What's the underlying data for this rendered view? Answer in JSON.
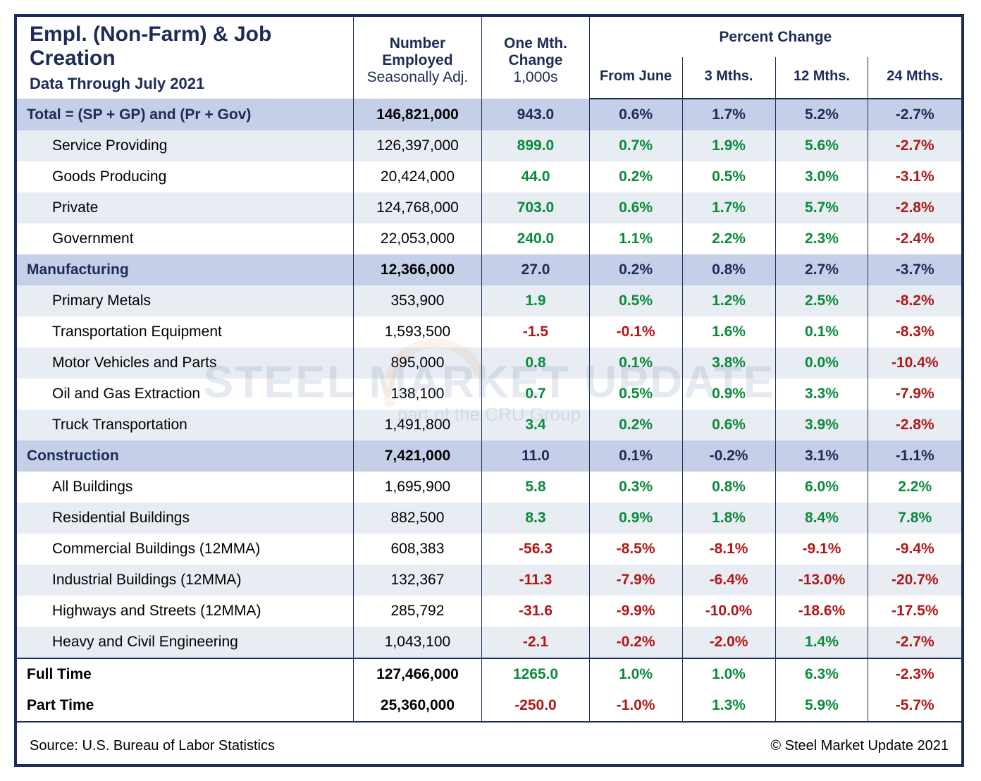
{
  "title": "Empl. (Non-Farm) & Job Creation",
  "subtitle": "Data Through July 2021",
  "headers": {
    "number_employed_top": "Number Employed",
    "number_employed_bot": "Seasonally Adj.",
    "one_month_top": "One Mth. Change",
    "one_month_bot": "1,000s",
    "percent_change": "Percent Change",
    "from_june": "From June",
    "m3": "3 Mths.",
    "m12": "12 Mths.",
    "m24": "24 Mths."
  },
  "colors": {
    "border": "#1d2b56",
    "section_bg": "#c5cfe8",
    "stripe": "#e8ecf3",
    "heading_text": "#1d2b56",
    "positive": "#0a8a3a",
    "negative": "#b01818"
  },
  "watermark": {
    "line1": "STEEL MARKET UPDATE",
    "line2": "part of the CRU Group"
  },
  "footer": {
    "source": "Source: U.S. Bureau of Labor Statistics",
    "copyright": "© Steel Market Update 2021"
  },
  "rows": [
    {
      "type": "section",
      "label": "Total = (SP + GP) and (Pr + Gov)",
      "employed": "146,821,000",
      "change": "943.0",
      "pct": [
        "0.6%",
        "1.7%",
        "5.2%",
        "-2.7%"
      ]
    },
    {
      "type": "data",
      "label": "Service Providing",
      "employed": "126,397,000",
      "change": "899.0",
      "pct": [
        "0.7%",
        "1.9%",
        "5.6%",
        "-2.7%"
      ]
    },
    {
      "type": "data",
      "label": "Goods Producing",
      "employed": "20,424,000",
      "change": "44.0",
      "pct": [
        "0.2%",
        "0.5%",
        "3.0%",
        "-3.1%"
      ]
    },
    {
      "type": "data",
      "label": "Private",
      "employed": "124,768,000",
      "change": "703.0",
      "pct": [
        "0.6%",
        "1.7%",
        "5.7%",
        "-2.8%"
      ]
    },
    {
      "type": "data",
      "label": "Government",
      "employed": "22,053,000",
      "change": "240.0",
      "pct": [
        "1.1%",
        "2.2%",
        "2.3%",
        "-2.4%"
      ]
    },
    {
      "type": "section",
      "label": "Manufacturing",
      "employed": "12,366,000",
      "change": "27.0",
      "pct": [
        "0.2%",
        "0.8%",
        "2.7%",
        "-3.7%"
      ]
    },
    {
      "type": "data",
      "label": "Primary Metals",
      "employed": "353,900",
      "change": "1.9",
      "pct": [
        "0.5%",
        "1.2%",
        "2.5%",
        "-8.2%"
      ]
    },
    {
      "type": "data",
      "label": "Transportation Equipment",
      "employed": "1,593,500",
      "change": "-1.5",
      "pct": [
        "-0.1%",
        "1.6%",
        "0.1%",
        "-8.3%"
      ]
    },
    {
      "type": "data",
      "label": "Motor Vehicles and Parts",
      "employed": "895,000",
      "change": "0.8",
      "pct": [
        "0.1%",
        "3.8%",
        "0.0%",
        "-10.4%"
      ]
    },
    {
      "type": "data",
      "label": "Oil and Gas Extraction",
      "employed": "138,100",
      "change": "0.7",
      "pct": [
        "0.5%",
        "0.9%",
        "3.3%",
        "-7.9%"
      ]
    },
    {
      "type": "data",
      "label": "Truck Transportation",
      "employed": "1,491,800",
      "change": "3.4",
      "pct": [
        "0.2%",
        "0.6%",
        "3.9%",
        "-2.8%"
      ]
    },
    {
      "type": "section",
      "label": "Construction",
      "employed": "7,421,000",
      "change": "11.0",
      "pct": [
        "0.1%",
        "-0.2%",
        "3.1%",
        "-1.1%"
      ]
    },
    {
      "type": "data",
      "label": "All Buildings",
      "employed": "1,695,900",
      "change": "5.8",
      "pct": [
        "0.3%",
        "0.8%",
        "6.0%",
        "2.2%"
      ]
    },
    {
      "type": "data",
      "label": "Residential Buildings",
      "employed": "882,500",
      "change": "8.3",
      "pct": [
        "0.9%",
        "1.8%",
        "8.4%",
        "7.8%"
      ]
    },
    {
      "type": "data",
      "label": "Commercial Buildings (12MMA)",
      "employed": "608,383",
      "change": "-56.3",
      "pct": [
        "-8.5%",
        "-8.1%",
        "-9.1%",
        "-9.4%"
      ]
    },
    {
      "type": "data",
      "label": "Industrial Buildings (12MMA)",
      "employed": "132,367",
      "change": "-11.3",
      "pct": [
        "-7.9%",
        "-6.4%",
        "-13.0%",
        "-20.7%"
      ]
    },
    {
      "type": "data",
      "label": "Highways and Streets (12MMA)",
      "employed": "285,792",
      "change": "-31.6",
      "pct": [
        "-9.9%",
        "-10.0%",
        "-18.6%",
        "-17.5%"
      ]
    },
    {
      "type": "data",
      "label": "Heavy and Civil Engineering",
      "employed": "1,043,100",
      "change": "-2.1",
      "pct": [
        "-0.2%",
        "-2.0%",
        "1.4%",
        "-2.7%"
      ]
    },
    {
      "type": "bottom",
      "label": "Full Time",
      "employed": "127,466,000",
      "change": "1265.0",
      "pct": [
        "1.0%",
        "1.0%",
        "6.3%",
        "-2.3%"
      ]
    },
    {
      "type": "bottom",
      "label": "Part Time",
      "employed": "25,360,000",
      "change": "-250.0",
      "pct": [
        "-1.0%",
        "1.3%",
        "5.9%",
        "-5.7%"
      ]
    }
  ]
}
